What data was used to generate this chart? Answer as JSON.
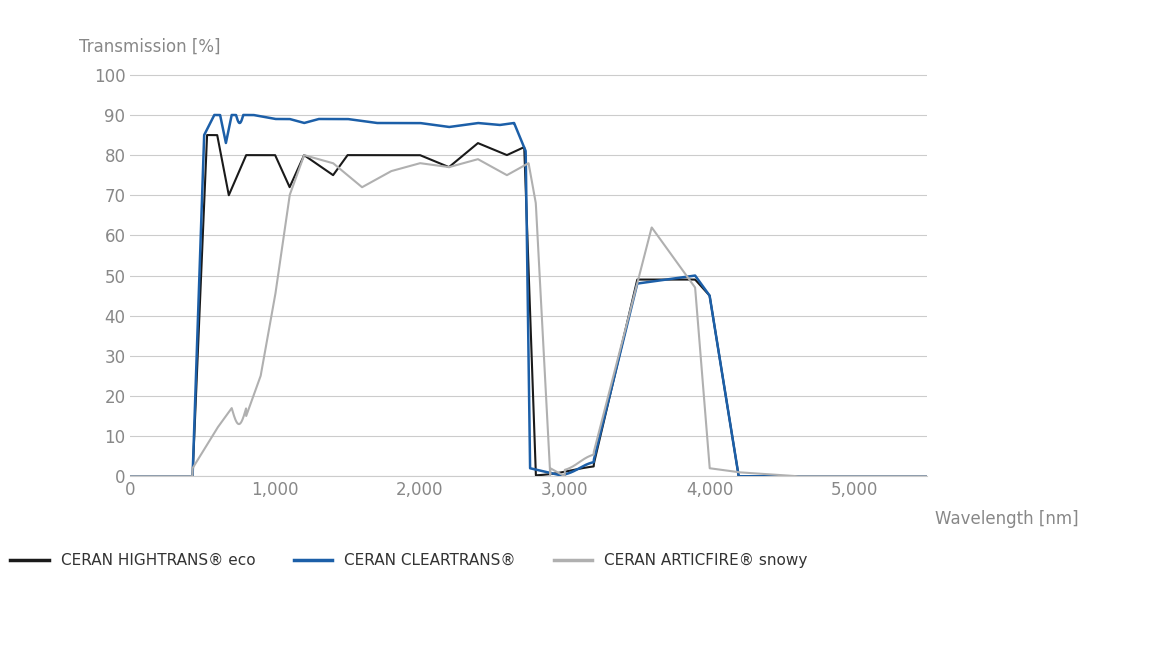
{
  "title_ylabel": "Transmission [%]",
  "xlabel": "Wavelength [nm]",
  "xlim": [
    0,
    5500
  ],
  "ylim": [
    0,
    105
  ],
  "xticks": [
    0,
    1000,
    2000,
    3000,
    4000,
    5000
  ],
  "xtick_labels": [
    "0",
    "1,000",
    "2,000",
    "3,000",
    "4,000",
    "5,000"
  ],
  "yticks": [
    0,
    10,
    20,
    30,
    40,
    50,
    60,
    70,
    80,
    90,
    100
  ],
  "ytick_labels": [
    "0",
    "10",
    "20",
    "30",
    "40",
    "50",
    "60",
    "70",
    "80",
    "90",
    "100"
  ],
  "color_hightrans": "#1a1a1a",
  "color_cleartrans": "#1c5fa8",
  "color_articfire": "#b0b0b0",
  "legend_labels": [
    "CERAN HIGHTRANS® eco",
    "CERAN CLEARTRANS®",
    "CERAN ARTICFIRE® snowy"
  ],
  "background_color": "#ffffff",
  "grid_color": "#cccccc",
  "axis_label_color": "#888888",
  "tick_label_color": "#888888"
}
